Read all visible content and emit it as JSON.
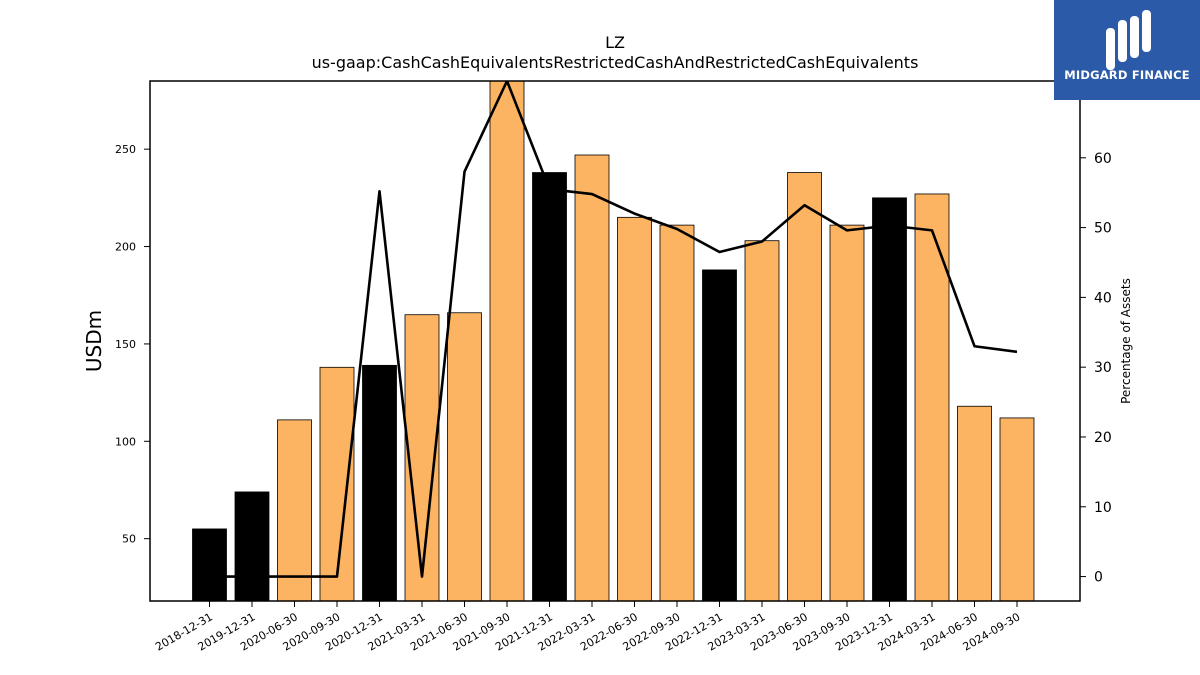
{
  "chart_data": {
    "type": "bar",
    "title": "LZ",
    "subtitle": "us-gaap:CashCashEquivalentsRestrictedCashAndRestrictedCashEquivalents",
    "ylabel": "USDm",
    "y2label": "Percentage of Assets",
    "categories": [
      "2018-12-31",
      "2019-12-31",
      "2020-06-30",
      "2020-09-30",
      "2020-12-31",
      "2021-03-31",
      "2021-06-30",
      "2021-09-30",
      "2021-12-31",
      "2022-03-31",
      "2022-06-30",
      "2022-09-30",
      "2022-12-31",
      "2023-03-31",
      "2023-06-30",
      "2023-09-30",
      "2023-12-31",
      "2024-03-31",
      "2024-06-30",
      "2024-09-30"
    ],
    "series": [
      {
        "kind": "bar",
        "values": [
          55,
          74,
          111,
          138,
          139,
          165,
          166,
          287,
          238,
          247,
          215,
          211,
          188,
          203,
          238,
          211,
          225,
          227,
          118,
          112
        ],
        "colors": [
          "#000000",
          "#000000",
          "#fdb462",
          "#fdb462",
          "#000000",
          "#fdb462",
          "#fdb462",
          "#fdb462",
          "#000000",
          "#fdb462",
          "#fdb462",
          "#fdb462",
          "#000000",
          "#fdb462",
          "#fdb462",
          "#fdb462",
          "#000000",
          "#fdb462",
          "#fdb462",
          "#fdb462"
        ]
      },
      {
        "kind": "line",
        "axis": "right",
        "values": [
          0,
          0,
          0,
          0,
          55.2,
          0,
          58,
          71,
          55.5,
          54.8,
          52,
          49.8,
          46.5,
          48,
          53.2,
          49.6,
          50.3,
          49.6,
          33,
          32.2
        ],
        "color": "#000000"
      }
    ],
    "ylim": [
      18,
      285
    ],
    "y2lim": [
      -3.5,
      71
    ],
    "yticks": [
      50,
      100,
      150,
      200,
      250
    ],
    "y2ticks": [
      0,
      10,
      20,
      30,
      40,
      50,
      60
    ],
    "grid": false,
    "bar_color_primary": "#fdb462",
    "bar_color_highlight": "#000000"
  },
  "logo": {
    "text": "MIDGARD FINANCE",
    "background": "#2b5aa8"
  }
}
